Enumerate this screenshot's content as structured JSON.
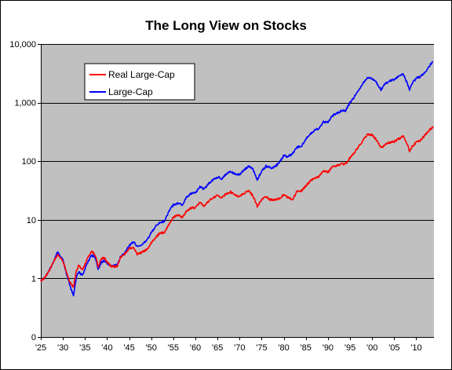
{
  "chart_data": {
    "type": "line",
    "title": "The Long View on Stocks",
    "xlabel": "",
    "ylabel": "",
    "y_scale": "log",
    "ylim": [
      0.1,
      10000
    ],
    "xlim": [
      1925,
      2014
    ],
    "grid": "horizontal",
    "plot_background": "#c0c0c0",
    "legend_placement": "top-left",
    "y_ticks": [
      {
        "value": 0.1,
        "label": "0"
      },
      {
        "value": 1,
        "label": "1"
      },
      {
        "value": 10,
        "label": "10"
      },
      {
        "value": 100,
        "label": "100"
      },
      {
        "value": 1000,
        "label": "1,000"
      },
      {
        "value": 10000,
        "label": "10,000"
      }
    ],
    "x_ticks": [
      {
        "value": 1925,
        "label": "'25"
      },
      {
        "value": 1930,
        "label": "'30"
      },
      {
        "value": 1935,
        "label": "'35"
      },
      {
        "value": 1940,
        "label": "'40"
      },
      {
        "value": 1945,
        "label": "'45"
      },
      {
        "value": 1950,
        "label": "'50"
      },
      {
        "value": 1955,
        "label": "'55"
      },
      {
        "value": 1960,
        "label": "'60"
      },
      {
        "value": 1965,
        "label": "'65"
      },
      {
        "value": 1970,
        "label": "'70"
      },
      {
        "value": 1975,
        "label": "'75"
      },
      {
        "value": 1980,
        "label": "'80"
      },
      {
        "value": 1985,
        "label": "'85"
      },
      {
        "value": 1990,
        "label": "'90"
      },
      {
        "value": 1995,
        "label": "'95"
      },
      {
        "value": 2000,
        "label": "'00"
      },
      {
        "value": 2005,
        "label": "'05"
      },
      {
        "value": 2010,
        "label": "'10"
      }
    ],
    "series": [
      {
        "name": "Real Large-Cap",
        "color": "#ff0000",
        "points": [
          [
            1925,
            0.9
          ],
          [
            1926,
            1.05
          ],
          [
            1927,
            1.4
          ],
          [
            1928,
            2.0
          ],
          [
            1928.8,
            2.6
          ],
          [
            1929.5,
            2.2
          ],
          [
            1930,
            2.0
          ],
          [
            1930.8,
            1.3
          ],
          [
            1931.5,
            0.9
          ],
          [
            1932.4,
            0.7
          ],
          [
            1933,
            1.3
          ],
          [
            1933.6,
            1.7
          ],
          [
            1934,
            1.5
          ],
          [
            1934.5,
            1.4
          ],
          [
            1935.5,
            2.2
          ],
          [
            1936.5,
            2.9
          ],
          [
            1937.3,
            2.5
          ],
          [
            1938,
            1.6
          ],
          [
            1938.7,
            2.2
          ],
          [
            1939.5,
            2.2
          ],
          [
            1940,
            1.9
          ],
          [
            1941,
            1.6
          ],
          [
            1942.3,
            1.6
          ],
          [
            1943,
            2.3
          ],
          [
            1944,
            2.6
          ],
          [
            1945,
            3.2
          ],
          [
            1946,
            3.4
          ],
          [
            1946.8,
            2.6
          ],
          [
            1948,
            2.8
          ],
          [
            1949,
            3.1
          ],
          [
            1950,
            4.0
          ],
          [
            1951,
            5.0
          ],
          [
            1952,
            6.0
          ],
          [
            1953,
            6.0
          ],
          [
            1954,
            8.5
          ],
          [
            1955,
            11.0
          ],
          [
            1956,
            12.0
          ],
          [
            1957,
            11.0
          ],
          [
            1958,
            14.0
          ],
          [
            1959,
            16.0
          ],
          [
            1960,
            16.0
          ],
          [
            1961,
            20.0
          ],
          [
            1962,
            17.0
          ],
          [
            1963,
            21.0
          ],
          [
            1964,
            24.0
          ],
          [
            1965,
            26.0
          ],
          [
            1966,
            24.0
          ],
          [
            1967,
            28.0
          ],
          [
            1968,
            30.0
          ],
          [
            1969,
            26.0
          ],
          [
            1970,
            25.0
          ],
          [
            1971,
            28.0
          ],
          [
            1972,
            31.0
          ],
          [
            1973,
            26.0
          ],
          [
            1974,
            17.0
          ],
          [
            1975,
            22.0
          ],
          [
            1976,
            25.0
          ],
          [
            1977,
            22.0
          ],
          [
            1978,
            22.0
          ],
          [
            1979,
            23.0
          ],
          [
            1980,
            27.0
          ],
          [
            1981,
            24.0
          ],
          [
            1982,
            22.0
          ],
          [
            1983,
            31.0
          ],
          [
            1984,
            31.0
          ],
          [
            1985,
            38.0
          ],
          [
            1986,
            46.0
          ],
          [
            1987,
            52.0
          ],
          [
            1988,
            55.0
          ],
          [
            1989,
            68.0
          ],
          [
            1990,
            65.0
          ],
          [
            1991,
            80.0
          ],
          [
            1992,
            85.0
          ],
          [
            1993,
            90.0
          ],
          [
            1994,
            90.0
          ],
          [
            1995,
            115.0
          ],
          [
            1996,
            140.0
          ],
          [
            1997,
            180.0
          ],
          [
            1998,
            230.0
          ],
          [
            1999,
            290.0
          ],
          [
            2000,
            280.0
          ],
          [
            2001,
            230.0
          ],
          [
            2002,
            170.0
          ],
          [
            2003,
            190.0
          ],
          [
            2004,
            210.0
          ],
          [
            2005,
            215.0
          ],
          [
            2006,
            240.0
          ],
          [
            2007,
            270.0
          ],
          [
            2008,
            190.0
          ],
          [
            2008.5,
            150.0
          ],
          [
            2009,
            175.0
          ],
          [
            2010,
            210.0
          ],
          [
            2011,
            230.0
          ],
          [
            2012,
            280.0
          ],
          [
            2013,
            340.0
          ],
          [
            2013.8,
            390.0
          ]
        ]
      },
      {
        "name": "Large-Cap",
        "color": "#0000ff",
        "points": [
          [
            1925,
            0.9
          ],
          [
            1926,
            1.05
          ],
          [
            1927,
            1.4
          ],
          [
            1928,
            2.0
          ],
          [
            1928.8,
            2.9
          ],
          [
            1929.5,
            2.3
          ],
          [
            1930,
            2.1
          ],
          [
            1930.8,
            1.2
          ],
          [
            1931.5,
            0.8
          ],
          [
            1932.4,
            0.5
          ],
          [
            1933,
            1.0
          ],
          [
            1933.6,
            1.3
          ],
          [
            1934,
            1.2
          ],
          [
            1934.5,
            1.15
          ],
          [
            1935.5,
            1.8
          ],
          [
            1936.5,
            2.5
          ],
          [
            1937.3,
            2.3
          ],
          [
            1938,
            1.4
          ],
          [
            1938.7,
            1.9
          ],
          [
            1939.5,
            2.0
          ],
          [
            1940,
            1.8
          ],
          [
            1941,
            1.6
          ],
          [
            1942.3,
            1.7
          ],
          [
            1943,
            2.3
          ],
          [
            1944,
            2.7
          ],
          [
            1945,
            3.6
          ],
          [
            1946,
            4.2
          ],
          [
            1946.8,
            3.5
          ],
          [
            1948,
            3.8
          ],
          [
            1949,
            4.5
          ],
          [
            1950,
            6.0
          ],
          [
            1951,
            7.8
          ],
          [
            1952,
            9.0
          ],
          [
            1953,
            9.5
          ],
          [
            1954,
            14.0
          ],
          [
            1955,
            18.0
          ],
          [
            1956,
            19.0
          ],
          [
            1957,
            18.0
          ],
          [
            1958,
            24.0
          ],
          [
            1959,
            28.0
          ],
          [
            1960,
            29.0
          ],
          [
            1961,
            37.0
          ],
          [
            1962,
            33.0
          ],
          [
            1963,
            42.0
          ],
          [
            1964,
            48.0
          ],
          [
            1965,
            54.0
          ],
          [
            1966,
            50.0
          ],
          [
            1967,
            61.0
          ],
          [
            1968,
            67.0
          ],
          [
            1969,
            60.0
          ],
          [
            1970,
            60.0
          ],
          [
            1971,
            70.0
          ],
          [
            1972,
            82.0
          ],
          [
            1973,
            74.0
          ],
          [
            1974,
            48.0
          ],
          [
            1975,
            68.0
          ],
          [
            1976,
            82.0
          ],
          [
            1977,
            77.0
          ],
          [
            1978,
            80.0
          ],
          [
            1979,
            95.0
          ],
          [
            1980,
            125.0
          ],
          [
            1981,
            120.0
          ],
          [
            1982,
            135.0
          ],
          [
            1983,
            175.0
          ],
          [
            1984,
            180.0
          ],
          [
            1985,
            240.0
          ],
          [
            1986,
            290.0
          ],
          [
            1987,
            340.0
          ],
          [
            1988,
            360.0
          ],
          [
            1989,
            470.0
          ],
          [
            1990,
            460.0
          ],
          [
            1991,
            600.0
          ],
          [
            1992,
            650.0
          ],
          [
            1993,
            720.0
          ],
          [
            1994,
            730.0
          ],
          [
            1995,
            1000.0
          ],
          [
            1996,
            1250.0
          ],
          [
            1997,
            1650.0
          ],
          [
            1998,
            2150.0
          ],
          [
            1999,
            2700.0
          ],
          [
            2000,
            2600.0
          ],
          [
            2001,
            2200.0
          ],
          [
            2002,
            1650.0
          ],
          [
            2003,
            2100.0
          ],
          [
            2004,
            2350.0
          ],
          [
            2005,
            2450.0
          ],
          [
            2006,
            2850.0
          ],
          [
            2007,
            3100.0
          ],
          [
            2008,
            2100.0
          ],
          [
            2008.5,
            1650.0
          ],
          [
            2009,
            2100.0
          ],
          [
            2010,
            2600.0
          ],
          [
            2011,
            2800.0
          ],
          [
            2012,
            3300.0
          ],
          [
            2013,
            4300.0
          ],
          [
            2013.8,
            5000.0
          ]
        ]
      }
    ]
  }
}
